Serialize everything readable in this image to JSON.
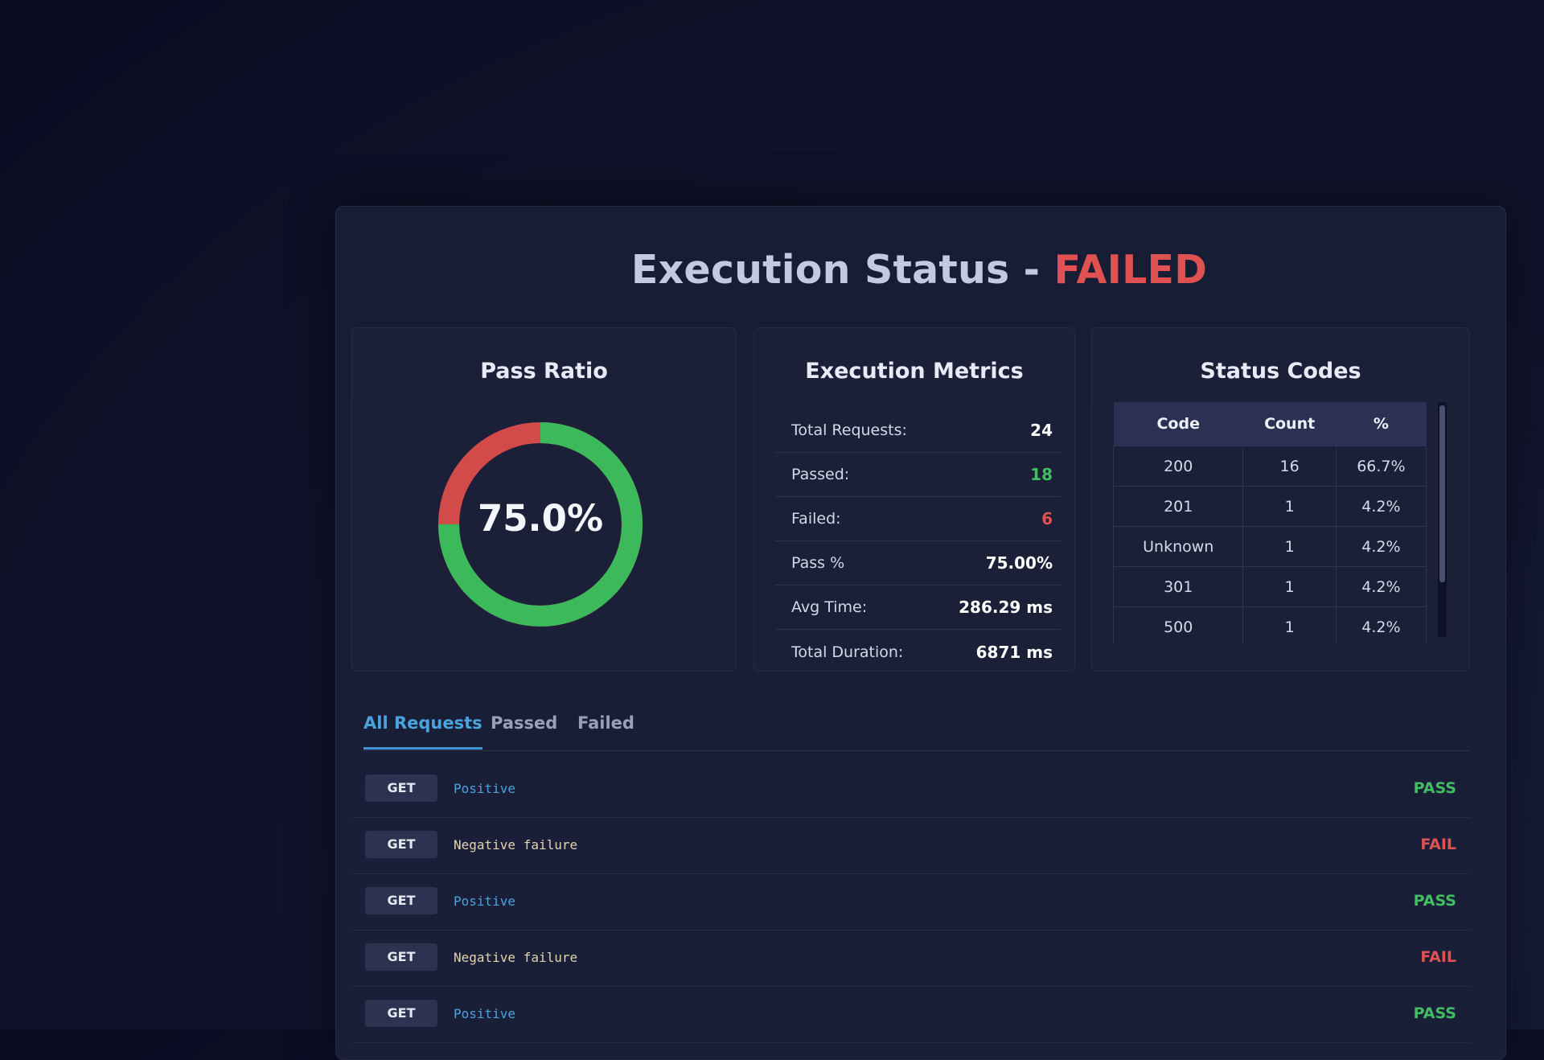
{
  "header": {
    "title": "Execution Status -",
    "status": "FAILED"
  },
  "pass_ratio": {
    "title": "Pass Ratio",
    "label": "75.0%",
    "pass_fraction": 0.75,
    "pass_color": "#3cb95a",
    "fail_color": "#d24a4a"
  },
  "metrics": {
    "title": "Execution Metrics",
    "rows": [
      {
        "label": "Total Requests:",
        "value": "24"
      },
      {
        "label": "Passed:",
        "value": "18"
      },
      {
        "label": "Failed:",
        "value": "6"
      },
      {
        "label": "Pass %",
        "value": "75.00%"
      },
      {
        "label": "Avg Time:",
        "value": "286.29 ms"
      },
      {
        "label": "Total Duration:",
        "value": "6871 ms"
      }
    ]
  },
  "status_codes": {
    "title": "Status Codes",
    "columns": [
      "Code",
      "Count",
      "%"
    ],
    "rows": [
      [
        "200",
        "16",
        "66.7%"
      ],
      [
        "201",
        "1",
        "4.2%"
      ],
      [
        "Unknown",
        "1",
        "4.2%"
      ],
      [
        "301",
        "1",
        "4.2%"
      ],
      [
        "500",
        "1",
        "4.2%"
      ]
    ]
  },
  "tabs": [
    {
      "label": "All Requests",
      "active": true
    },
    {
      "label": "Passed",
      "active": false
    },
    {
      "label": "Failed",
      "active": false
    }
  ],
  "requests": [
    {
      "method": "GET",
      "name": "Positive",
      "result": "PASS"
    },
    {
      "method": "GET",
      "name": "Negative failure",
      "result": "FAIL"
    },
    {
      "method": "GET",
      "name": "Positive",
      "result": "PASS"
    },
    {
      "method": "GET",
      "name": "Negative failure",
      "result": "FAIL"
    },
    {
      "method": "GET",
      "name": "Positive",
      "result": "PASS"
    }
  ]
}
